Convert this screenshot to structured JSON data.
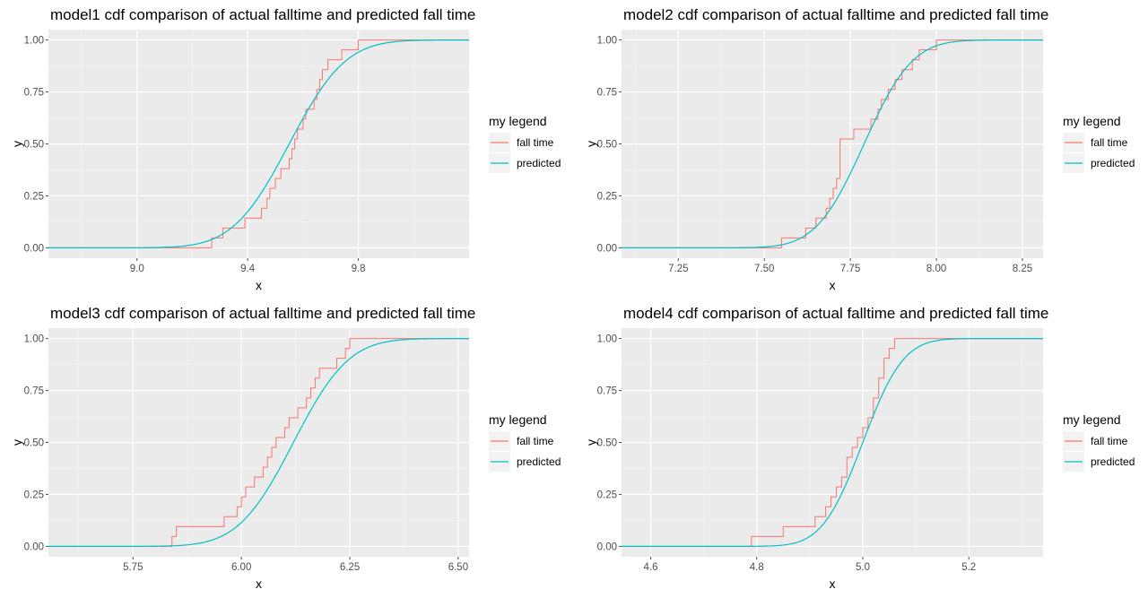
{
  "legend": {
    "title": "my legend",
    "entries": [
      {
        "name": "fall time",
        "color": "#F8766D"
      },
      {
        "name": "predicted",
        "color": "#00BFC4"
      }
    ]
  },
  "theme": {
    "panel_background": "#EBEBEB",
    "grid_major": "#FFFFFF",
    "grid_minor": "#F5F5F5",
    "tick_color": "#4D4D4D"
  },
  "chart_data": [
    {
      "type": "line",
      "title": "model1 cdf comparison of actual falltime and predicted fall time",
      "xlabel": "x",
      "ylabel": "y",
      "xlim": [
        8.68,
        10.2
      ],
      "ylim": [
        -0.05,
        1.05
      ],
      "xticks": [
        9.0,
        9.4,
        9.8
      ],
      "xtick_labels": [
        "9.0",
        "9.4",
        "9.8"
      ],
      "yticks": [
        0,
        0.25,
        0.5,
        0.75,
        1.0
      ],
      "ytick_labels": [
        "0.00",
        "0.25",
        "0.50",
        "0.75",
        "1.00"
      ],
      "series": [
        {
          "name": "fall time",
          "kind": "ecdf",
          "values": [
            9.27,
            9.31,
            9.39,
            9.45,
            9.47,
            9.48,
            9.5,
            9.52,
            9.55,
            9.56,
            9.57,
            9.58,
            9.6,
            9.61,
            9.64,
            9.65,
            9.66,
            9.67,
            9.69,
            9.74,
            9.8
          ]
        },
        {
          "name": "predicted",
          "kind": "normal_cdf",
          "mean": 9.55,
          "sd": 0.16,
          "xrange": [
            8.68,
            10.2
          ]
        }
      ]
    },
    {
      "type": "line",
      "title": "model2 cdf comparison of actual falltime and predicted fall time",
      "xlabel": "x",
      "ylabel": "y",
      "xlim": [
        7.085,
        8.31
      ],
      "ylim": [
        -0.05,
        1.05
      ],
      "xticks": [
        7.25,
        7.5,
        7.75,
        8.0,
        8.25
      ],
      "xtick_labels": [
        "7.25",
        "7.50",
        "7.75",
        "8.00",
        "8.25"
      ],
      "yticks": [
        0,
        0.25,
        0.5,
        0.75,
        1.0
      ],
      "ytick_labels": [
        "0.00",
        "0.25",
        "0.50",
        "0.75",
        "1.00"
      ],
      "series": [
        {
          "name": "fall time",
          "kind": "ecdf",
          "values": [
            7.55,
            7.62,
            7.65,
            7.68,
            7.69,
            7.7,
            7.71,
            7.72,
            7.72,
            7.72,
            7.72,
            7.76,
            7.81,
            7.83,
            7.84,
            7.86,
            7.88,
            7.9,
            7.93,
            7.95,
            8.0
          ]
        },
        {
          "name": "predicted",
          "kind": "normal_cdf",
          "mean": 7.79,
          "sd": 0.11,
          "xrange": [
            7.085,
            8.31
          ]
        }
      ]
    },
    {
      "type": "line",
      "title": "model3 cdf comparison of actual falltime and predicted fall time",
      "xlabel": "x",
      "ylabel": "y",
      "xlim": [
        5.555,
        6.525
      ],
      "ylim": [
        -0.05,
        1.05
      ],
      "xticks": [
        5.75,
        6.0,
        6.25,
        6.5
      ],
      "xtick_labels": [
        "5.75",
        "6.00",
        "6.25",
        "6.50"
      ],
      "yticks": [
        0,
        0.25,
        0.5,
        0.75,
        1.0
      ],
      "ytick_labels": [
        "0.00",
        "0.25",
        "0.50",
        "0.75",
        "1.00"
      ],
      "series": [
        {
          "name": "fall time",
          "kind": "ecdf",
          "values": [
            5.84,
            5.85,
            5.96,
            5.99,
            6.0,
            6.01,
            6.03,
            6.05,
            6.06,
            6.07,
            6.08,
            6.1,
            6.11,
            6.13,
            6.15,
            6.16,
            6.17,
            6.18,
            6.22,
            6.24,
            6.25
          ]
        },
        {
          "name": "predicted",
          "kind": "normal_cdf",
          "mean": 6.12,
          "sd": 0.1,
          "xrange": [
            5.555,
            6.525
          ]
        }
      ]
    },
    {
      "type": "line",
      "title": "model4 cdf comparison of actual falltime and predicted fall time",
      "xlabel": "x",
      "ylabel": "y",
      "xlim": [
        4.545,
        5.34
      ],
      "ylim": [
        -0.05,
        1.05
      ],
      "xticks": [
        4.6,
        4.8,
        5.0,
        5.2
      ],
      "xtick_labels": [
        "4.6",
        "4.8",
        "5.0",
        "5.2"
      ],
      "yticks": [
        0,
        0.25,
        0.5,
        0.75,
        1.0
      ],
      "ytick_labels": [
        "0.00",
        "0.25",
        "0.50",
        "0.75",
        "1.00"
      ],
      "series": [
        {
          "name": "fall time",
          "kind": "ecdf",
          "values": [
            4.79,
            4.85,
            4.91,
            4.93,
            4.94,
            4.95,
            4.96,
            4.97,
            4.97,
            4.98,
            4.99,
            5.0,
            5.01,
            5.02,
            5.02,
            5.03,
            5.03,
            5.04,
            5.04,
            5.05,
            5.06
          ]
        },
        {
          "name": "predicted",
          "kind": "normal_cdf",
          "mean": 5.0,
          "sd": 0.06,
          "xrange": [
            4.545,
            5.34
          ]
        }
      ]
    }
  ]
}
